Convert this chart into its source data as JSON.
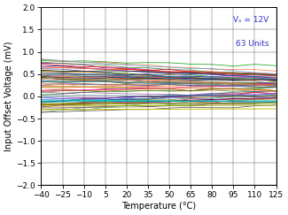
{
  "title": "",
  "xlabel": "Temperature (°C)",
  "ylabel": "Input Offset Voltage (mV)",
  "xlim": [
    -40,
    125
  ],
  "ylim": [
    -2,
    2
  ],
  "xticks": [
    -40,
    -25,
    -10,
    5,
    20,
    35,
    50,
    65,
    80,
    95,
    110,
    125
  ],
  "yticks": [
    -2,
    -1.5,
    -1,
    -0.5,
    0,
    0.5,
    1,
    1.5,
    2
  ],
  "annotation_line1": "Vₛ = 12V",
  "annotation_line2": "63 Units",
  "annotation_color": "#3333CC",
  "n_units": 63,
  "temp_points": [
    -40,
    -25,
    -10,
    5,
    20,
    35,
    50,
    65,
    80,
    95,
    110,
    125
  ],
  "seed": 7,
  "background_color": "#ffffff",
  "line_width": 0.55
}
